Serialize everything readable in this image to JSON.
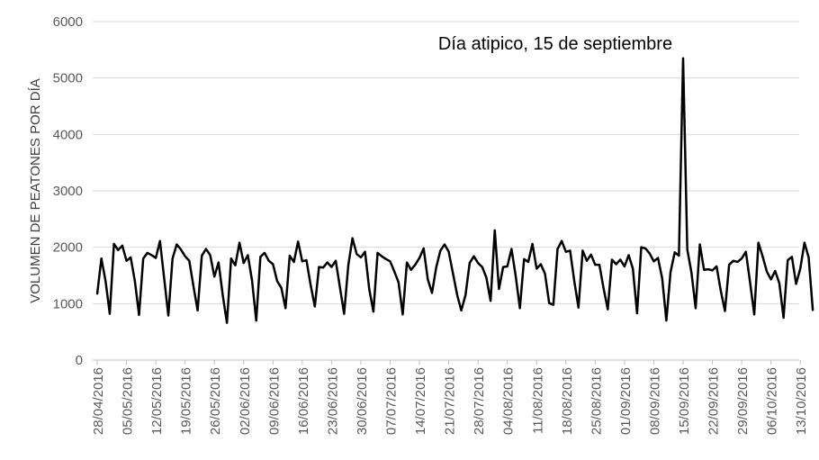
{
  "chart_data": {
    "type": "line",
    "title": "",
    "xlabel": "",
    "ylabel": "VOLUMEN DE PEATONES POR DÍA",
    "ylim": [
      0,
      6000
    ],
    "yticks": [
      0,
      1000,
      2000,
      3000,
      4000,
      5000,
      6000
    ],
    "grid": true,
    "x_tick_labels": [
      "28/04/2016",
      "05/05/2016",
      "12/05/2016",
      "19/05/2016",
      "26/05/2016",
      "02/06/2016",
      "09/06/2016",
      "16/06/2016",
      "23/06/2016",
      "30/06/2016",
      "07/07/2016",
      "14/07/2016",
      "21/07/2016",
      "28/07/2016",
      "04/08/2016",
      "11/08/2016",
      "18/08/2016",
      "25/08/2016",
      "01/09/2016",
      "08/09/2016",
      "15/09/2016",
      "22/09/2016",
      "29/09/2016",
      "06/10/2016",
      "13/10/2016"
    ],
    "annotation": {
      "text": "Día atipico, 15 de septiembre",
      "x": "15/09/2016",
      "value": 5350
    },
    "series": [
      {
        "start_date": "28/04/2016",
        "values": [
          1170,
          1800,
          1400,
          820,
          2060,
          1950,
          2030,
          1760,
          1820,
          1400,
          800,
          1800,
          1900,
          1860,
          1810,
          2110,
          1450,
          790,
          1800,
          2050,
          1960,
          1840,
          1760,
          1310,
          880,
          1850,
          1970,
          1860,
          1480,
          1730,
          1150,
          660,
          1800,
          1680,
          2080,
          1720,
          1860,
          1410,
          700,
          1830,
          1900,
          1760,
          1700,
          1400,
          1280,
          920,
          1850,
          1740,
          2100,
          1750,
          1770,
          1330,
          950,
          1650,
          1640,
          1730,
          1650,
          1760,
          1290,
          820,
          1680,
          2160,
          1880,
          1820,
          1920,
          1260,
          860,
          1900,
          1840,
          1790,
          1750,
          1570,
          1380,
          810,
          1730,
          1600,
          1690,
          1810,
          1980,
          1430,
          1190,
          1640,
          1940,
          2050,
          1920,
          1540,
          1160,
          880,
          1150,
          1720,
          1840,
          1720,
          1650,
          1460,
          1050,
          2300,
          1260,
          1650,
          1660,
          1970,
          1490,
          920,
          1790,
          1740,
          2060,
          1620,
          1700,
          1530,
          1010,
          980,
          1970,
          2110,
          1920,
          1940,
          1400,
          930,
          1940,
          1760,
          1870,
          1690,
          1690,
          1270,
          900,
          1780,
          1700,
          1780,
          1660,
          1860,
          1620,
          830,
          2000,
          1980,
          1890,
          1750,
          1810,
          1450,
          700,
          1560,
          1910,
          1850,
          5350,
          1960,
          1550,
          920,
          2050,
          1600,
          1610,
          1590,
          1660,
          1230,
          870,
          1690,
          1760,
          1740,
          1800,
          1920,
          1380,
          810,
          2080,
          1840,
          1570,
          1430,
          1580,
          1360,
          750,
          1770,
          1830,
          1350,
          1620,
          2080,
          1820,
          880
        ]
      }
    ]
  }
}
